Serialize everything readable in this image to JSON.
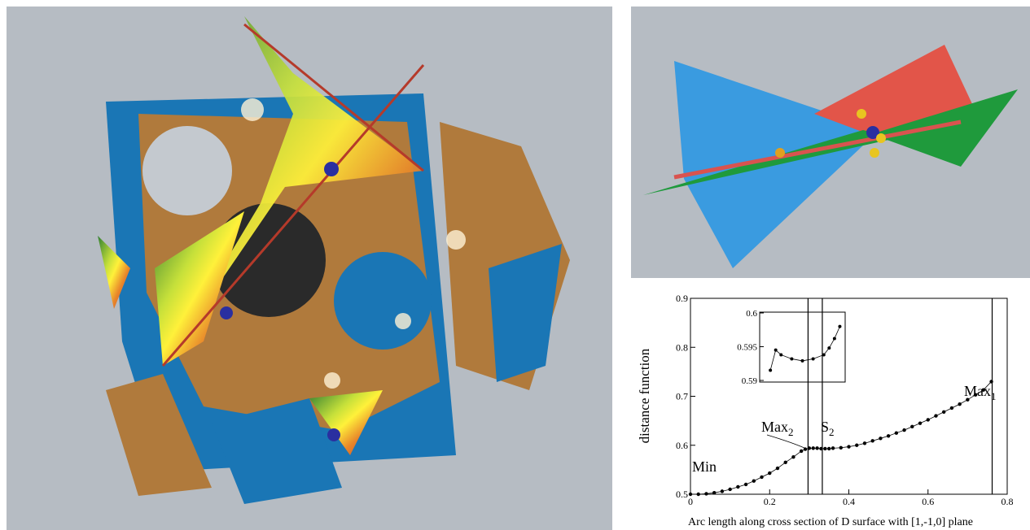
{
  "chart_data": {
    "type": "scatter",
    "x_label": "Arc length along cross section of D surface with [1,-1,0] plane",
    "y_label": "distance function",
    "xlim": [
      0,
      0.8
    ],
    "ylim": [
      0.5,
      0.9
    ],
    "xticks": [
      0,
      0.2,
      0.4,
      0.6,
      0.8
    ],
    "yticks": [
      0.5,
      0.6,
      0.7,
      0.8,
      0.9
    ],
    "vlines": [
      0.297,
      0.333,
      0.762
    ],
    "annotations": [
      {
        "text": "Min"
      },
      {
        "text": "Max",
        "subscript": "2"
      },
      {
        "text": "S",
        "subscript": "2"
      },
      {
        "text": "Max",
        "subscript": "1"
      }
    ],
    "series": [
      {
        "color": "#000000",
        "x": [
          0,
          0.02,
          0.04,
          0.06,
          0.08,
          0.1,
          0.12,
          0.14,
          0.16,
          0.18,
          0.2,
          0.22,
          0.24,
          0.26,
          0.28,
          0.29,
          0.3,
          0.31,
          0.32,
          0.33,
          0.34,
          0.35,
          0.36,
          0.38,
          0.4,
          0.42,
          0.44,
          0.46,
          0.48,
          0.5,
          0.52,
          0.54,
          0.56,
          0.58,
          0.6,
          0.62,
          0.64,
          0.66,
          0.68,
          0.7,
          0.72,
          0.74,
          0.76
        ],
        "values": [
          0.5,
          0.5,
          0.501,
          0.503,
          0.506,
          0.51,
          0.515,
          0.52,
          0.527,
          0.535,
          0.543,
          0.553,
          0.565,
          0.576,
          0.588,
          0.592,
          0.594,
          0.594,
          0.594,
          0.593,
          0.593,
          0.593,
          0.594,
          0.595,
          0.597,
          0.6,
          0.604,
          0.609,
          0.614,
          0.619,
          0.625,
          0.631,
          0.638,
          0.645,
          0.652,
          0.66,
          0.668,
          0.676,
          0.684,
          0.693,
          0.703,
          0.713,
          0.73
        ]
      }
    ],
    "inset": {
      "ylim": [
        0.59,
        0.6
      ],
      "xlim": [
        0.28,
        0.36
      ],
      "yticks": [
        0.59,
        0.595,
        0.6
      ],
      "x": [
        0.29,
        0.295,
        0.3,
        0.31,
        0.32,
        0.33,
        0.34,
        0.345,
        0.35,
        0.355
      ],
      "values": [
        0.5915,
        0.5945,
        0.5938,
        0.5932,
        0.5929,
        0.5932,
        0.5938,
        0.5948,
        0.5962,
        0.598
      ]
    }
  }
}
